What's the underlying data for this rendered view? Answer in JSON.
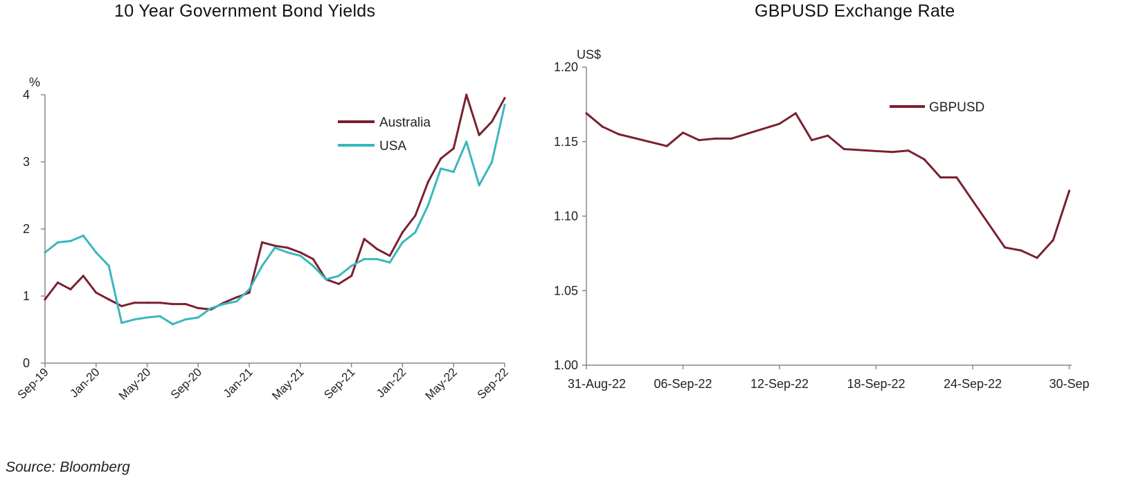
{
  "source": "Source: Bloomberg",
  "colors": {
    "australia": "#7b2030",
    "usa": "#3ab7bb",
    "gbpusd": "#7b2030",
    "axis": "#888888",
    "text": "#222222"
  },
  "chart_data": [
    {
      "type": "line",
      "title": "10 Year Government Bond Yields",
      "ylabel": "%",
      "ylim": [
        0,
        4
      ],
      "yticks": [
        "0",
        "1",
        "2",
        "3",
        "4"
      ],
      "xticks": [
        "Sep-19",
        "Jan-20",
        "May-20",
        "Sep-20",
        "Jan-21",
        "May-21",
        "Sep-21",
        "Jan-22",
        "May-22",
        "Sep-22"
      ],
      "legend": "top-right",
      "series": [
        {
          "name": "Australia",
          "x": [
            "Sep-19",
            "Oct-19",
            "Nov-19",
            "Dec-19",
            "Jan-20",
            "Feb-20",
            "Mar-20",
            "Apr-20",
            "May-20",
            "Jun-20",
            "Jul-20",
            "Aug-20",
            "Sep-20",
            "Oct-20",
            "Nov-20",
            "Dec-20",
            "Jan-21",
            "Feb-21",
            "Mar-21",
            "Apr-21",
            "May-21",
            "Jun-21",
            "Jul-21",
            "Aug-21",
            "Sep-21",
            "Oct-21",
            "Nov-21",
            "Dec-21",
            "Jan-22",
            "Feb-22",
            "Mar-22",
            "Apr-22",
            "May-22",
            "Jun-22",
            "Jul-22",
            "Aug-22",
            "Sep-22"
          ],
          "values": [
            0.95,
            1.2,
            1.1,
            1.3,
            1.05,
            0.95,
            0.85,
            0.9,
            0.9,
            0.9,
            0.88,
            0.88,
            0.82,
            0.8,
            0.9,
            0.98,
            1.05,
            1.8,
            1.75,
            1.72,
            1.65,
            1.55,
            1.25,
            1.18,
            1.3,
            1.85,
            1.7,
            1.6,
            1.95,
            2.2,
            2.7,
            3.05,
            3.2,
            4.0,
            3.4,
            3.6,
            3.95
          ]
        },
        {
          "name": "USA",
          "x": [
            "Sep-19",
            "Oct-19",
            "Nov-19",
            "Dec-19",
            "Jan-20",
            "Feb-20",
            "Mar-20",
            "Apr-20",
            "May-20",
            "Jun-20",
            "Jul-20",
            "Aug-20",
            "Sep-20",
            "Oct-20",
            "Nov-20",
            "Dec-20",
            "Jan-21",
            "Feb-21",
            "Mar-21",
            "Apr-21",
            "May-21",
            "Jun-21",
            "Jul-21",
            "Aug-21",
            "Sep-21",
            "Oct-21",
            "Nov-21",
            "Dec-21",
            "Jan-22",
            "Feb-22",
            "Mar-22",
            "Apr-22",
            "May-22",
            "Jun-22",
            "Jul-22",
            "Aug-22",
            "Sep-22"
          ],
          "values": [
            1.65,
            1.8,
            1.82,
            1.9,
            1.65,
            1.45,
            0.6,
            0.65,
            0.68,
            0.7,
            0.58,
            0.65,
            0.68,
            0.82,
            0.88,
            0.92,
            1.1,
            1.45,
            1.72,
            1.65,
            1.6,
            1.45,
            1.25,
            1.3,
            1.45,
            1.55,
            1.55,
            1.5,
            1.8,
            1.95,
            2.35,
            2.9,
            2.85,
            3.3,
            2.65,
            3.0,
            3.85
          ]
        }
      ]
    },
    {
      "type": "line",
      "title": "GBPUSD Exchange Rate",
      "ylabel": "US$",
      "ylim": [
        1.0,
        1.2
      ],
      "yticks": [
        "1.00",
        "1.05",
        "1.10",
        "1.15",
        "1.20"
      ],
      "xticks": [
        "31-Aug-22",
        "06-Sep-22",
        "12-Sep-22",
        "18-Sep-22",
        "24-Sep-22",
        "30-Sep"
      ],
      "legend": "top-right",
      "series": [
        {
          "name": "GBPUSD",
          "x": [
            "2022-08-31",
            "2022-09-01",
            "2022-09-02",
            "2022-09-05",
            "2022-09-06",
            "2022-09-07",
            "2022-09-08",
            "2022-09-09",
            "2022-09-12",
            "2022-09-13",
            "2022-09-14",
            "2022-09-15",
            "2022-09-16",
            "2022-09-19",
            "2022-09-20",
            "2022-09-21",
            "2022-09-22",
            "2022-09-23",
            "2022-09-26",
            "2022-09-27",
            "2022-09-28",
            "2022-09-29",
            "2022-09-30"
          ],
          "values": [
            1.169,
            1.16,
            1.155,
            1.147,
            1.156,
            1.151,
            1.152,
            1.152,
            1.162,
            1.169,
            1.151,
            1.154,
            1.145,
            1.143,
            1.144,
            1.138,
            1.126,
            1.126,
            1.079,
            1.077,
            1.072,
            1.084,
            1.117
          ]
        }
      ]
    }
  ]
}
